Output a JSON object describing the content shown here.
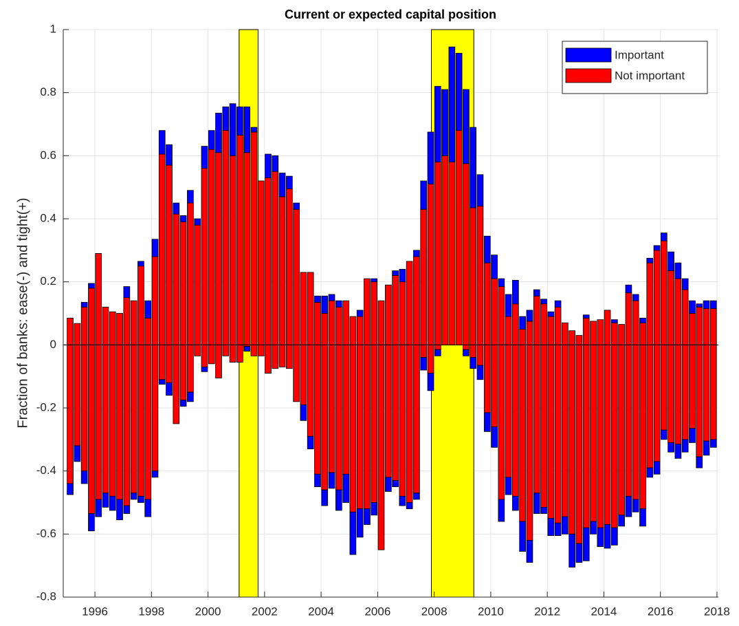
{
  "chart_data": {
    "type": "stacked_bar",
    "title": "Current or expected capital position",
    "ylabel": "Fraction of banks: ease(-) and tight(+)",
    "xlim": [
      1994.88,
      2018.05
    ],
    "ylim": [
      -0.8,
      1
    ],
    "xticks": [
      1996,
      1998,
      2000,
      2002,
      2004,
      2006,
      2008,
      2010,
      2012,
      2014,
      2016,
      2018
    ],
    "yticks": [
      -0.8,
      -0.6,
      -0.4,
      -0.2,
      0,
      0.2,
      0.4,
      0.6,
      0.8,
      1
    ],
    "grid": true,
    "legend": "upper right",
    "shaded_regions": [
      [
        2001.1,
        2001.77
      ],
      [
        2007.9,
        2009.4
      ]
    ],
    "shade_color": "#ffff00",
    "x": [
      1995.125,
      1995.375,
      1995.625,
      1995.875,
      1996.125,
      1996.375,
      1996.625,
      1996.875,
      1997.125,
      1997.375,
      1997.625,
      1997.875,
      1998.125,
      1998.375,
      1998.625,
      1998.875,
      1999.125,
      1999.375,
      1999.625,
      1999.875,
      2000.125,
      2000.375,
      2000.625,
      2000.875,
      2001.125,
      2001.375,
      2001.625,
      2001.875,
      2002.125,
      2002.375,
      2002.625,
      2002.875,
      2003.125,
      2003.375,
      2003.625,
      2003.875,
      2004.125,
      2004.375,
      2004.625,
      2004.875,
      2005.125,
      2005.375,
      2005.625,
      2005.875,
      2006.125,
      2006.375,
      2006.625,
      2006.875,
      2007.125,
      2007.375,
      2007.625,
      2007.875,
      2008.125,
      2008.375,
      2008.625,
      2008.875,
      2009.125,
      2009.375,
      2009.625,
      2009.875,
      2010.125,
      2010.375,
      2010.625,
      2010.875,
      2011.125,
      2011.375,
      2011.625,
      2011.875,
      2012.125,
      2012.375,
      2012.625,
      2012.875,
      2013.125,
      2013.375,
      2013.625,
      2013.875,
      2014.125,
      2014.375,
      2014.625,
      2014.875,
      2015.125,
      2015.375,
      2015.625,
      2015.875,
      2016.125,
      2016.375,
      2016.625,
      2016.875,
      2017.125,
      2017.375,
      2017.625,
      2017.875
    ],
    "series": [
      {
        "name": "Important",
        "color": "#0000ff",
        "values": [
          0,
          0,
          0.015,
          0.015,
          0,
          0,
          0,
          0,
          0.035,
          0,
          0.015,
          0.055,
          0.055,
          0.075,
          0.065,
          0.035,
          0.02,
          0.04,
          0.02,
          0.07,
          0.06,
          0.125,
          0.075,
          0.165,
          0.09,
          0.145,
          0.015,
          0,
          0.075,
          0.05,
          0.075,
          0.04,
          0.02,
          0,
          0,
          0.02,
          0.055,
          0.02,
          0.02,
          0,
          0,
          0.02,
          0,
          0.01,
          0,
          0,
          0.015,
          0.04,
          0,
          0.02,
          0.09,
          0.165,
          0.24,
          0.21,
          0.365,
          0.245,
          0.235,
          0.255,
          0.1,
          0.085,
          0.075,
          0.025,
          0.07,
          0.075,
          0.04,
          0.035,
          0.02,
          0.015,
          0.015,
          0.02,
          0,
          0,
          0,
          0.01,
          0,
          0,
          0,
          0.01,
          0,
          0.025,
          0.02,
          0.015,
          0.015,
          0.015,
          0.025,
          0.06,
          0.05,
          0.035,
          0.04,
          0.01,
          0.025,
          0.025
        ],
        "neg_values": [
          -0.035,
          -0.05,
          -0.04,
          -0.055,
          -0.055,
          -0.045,
          -0.045,
          -0.065,
          -0.025,
          -0.02,
          -0.02,
          -0.055,
          -0.02,
          -0.015,
          -0.04,
          0,
          -0.02,
          -0.03,
          0,
          -0.015,
          0,
          0,
          0,
          0,
          0,
          -0.015,
          0,
          0,
          0,
          0,
          0,
          0,
          0,
          -0.05,
          -0.04,
          -0.04,
          -0.05,
          -0.05,
          -0.065,
          -0.09,
          -0.135,
          -0.09,
          -0.05,
          -0.04,
          0,
          -0.045,
          -0.02,
          -0.03,
          -0.02,
          -0.02,
          -0.04,
          -0.055,
          -0.02,
          0,
          0,
          0,
          -0.02,
          -0.035,
          -0.045,
          -0.06,
          -0.065,
          -0.07,
          -0.055,
          -0.045,
          -0.095,
          -0.07,
          -0.065,
          -0.02,
          -0.055,
          -0.04,
          -0.055,
          -0.105,
          -0.06,
          -0.105,
          -0.04,
          -0.06,
          -0.075,
          -0.055,
          -0.035,
          -0.065,
          -0.04,
          -0.055,
          -0.03,
          -0.04,
          -0.03,
          -0.03,
          -0.045,
          -0.04,
          -0.045,
          -0.035,
          -0.045,
          -0.025
        ]
      },
      {
        "name": "Not important",
        "color": "#ff0000",
        "values": [
          0.085,
          0.068,
          0.12,
          0.18,
          0.29,
          0.12,
          0.105,
          0.1,
          0.15,
          0.14,
          0.25,
          0.085,
          0.28,
          0.605,
          0.57,
          0.415,
          0.39,
          0.45,
          0.38,
          0.56,
          0.62,
          0.61,
          0.68,
          0.6,
          0.665,
          0.61,
          0.675,
          0.52,
          0.53,
          0.55,
          0.47,
          0.495,
          0.43,
          0.23,
          0.23,
          0.135,
          0.1,
          0.14,
          0.12,
          0.14,
          0.09,
          0.09,
          0.21,
          0.2,
          0.14,
          0.19,
          0.22,
          0.2,
          0.265,
          0.28,
          0.43,
          0.51,
          0.58,
          0.6,
          0.58,
          0.68,
          0.575,
          0.435,
          0.44,
          0.26,
          0.21,
          0.185,
          0.09,
          0.13,
          0.05,
          0.075,
          0.155,
          0.13,
          0.09,
          0.12,
          0.07,
          0.045,
          0.03,
          0.085,
          0.075,
          0.08,
          0.11,
          0.07,
          0.065,
          0.165,
          0.14,
          0.07,
          0.26,
          0.3,
          0.33,
          0.235,
          0.21,
          0.175,
          0.1,
          0.12,
          0.115,
          0.115
        ],
        "neg_values": [
          -0.44,
          -0.32,
          -0.4,
          -0.535,
          -0.49,
          -0.47,
          -0.48,
          -0.49,
          -0.51,
          -0.47,
          -0.48,
          -0.49,
          -0.4,
          -0.11,
          -0.12,
          -0.25,
          -0.175,
          -0.15,
          -0.035,
          -0.07,
          -0.06,
          -0.105,
          -0.035,
          -0.055,
          -0.055,
          -0.005,
          -0.035,
          -0.035,
          -0.09,
          -0.075,
          -0.07,
          -0.075,
          -0.18,
          -0.19,
          -0.29,
          -0.41,
          -0.46,
          -0.405,
          -0.46,
          -0.41,
          -0.53,
          -0.52,
          -0.52,
          -0.5,
          -0.65,
          -0.42,
          -0.43,
          -0.48,
          -0.5,
          -0.47,
          -0.04,
          -0.09,
          -0.015,
          0,
          0,
          0,
          -0.015,
          -0.04,
          -0.065,
          -0.215,
          -0.26,
          -0.49,
          -0.42,
          -0.48,
          -0.56,
          -0.62,
          -0.47,
          -0.515,
          -0.55,
          -0.565,
          -0.545,
          -0.6,
          -0.63,
          -0.58,
          -0.56,
          -0.58,
          -0.57,
          -0.58,
          -0.54,
          -0.48,
          -0.49,
          -0.52,
          -0.39,
          -0.37,
          -0.27,
          -0.31,
          -0.315,
          -0.3,
          -0.265,
          -0.355,
          -0.305,
          -0.3
        ]
      }
    ]
  }
}
